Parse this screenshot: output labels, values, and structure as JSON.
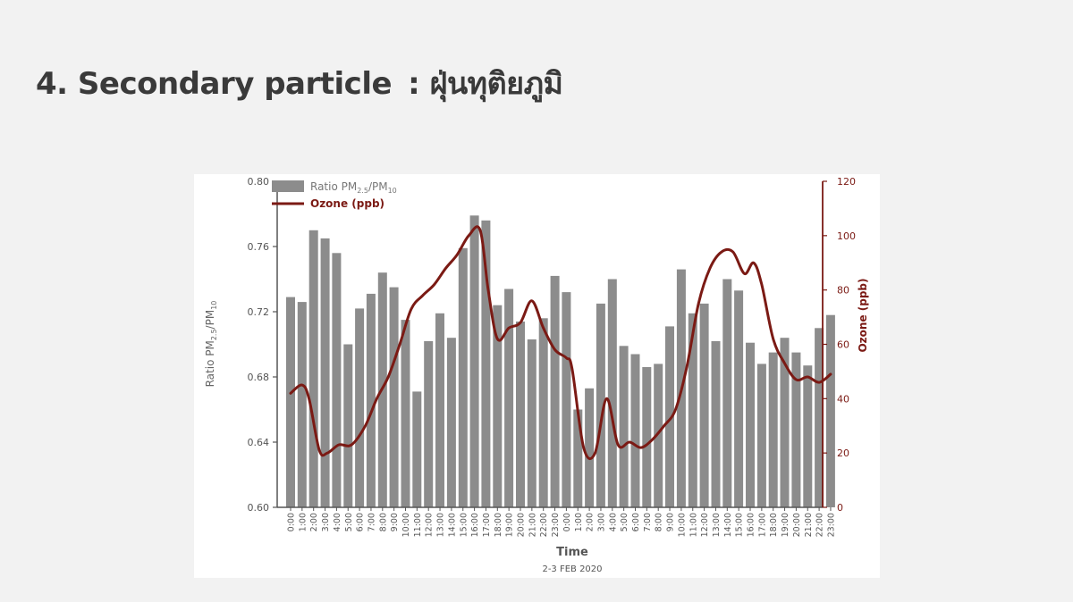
{
  "slide": {
    "title_main": "4. Secondary particle",
    "title_sep": ":",
    "title_thai": "ฝุ่นทุติยภูมิ"
  },
  "colors": {
    "bar": "#8c8c8c",
    "line": "#7b1a14",
    "axis_left": "#555555",
    "axis_right": "#7b1a14",
    "text": "#666666"
  },
  "chart_data": {
    "type": "bar",
    "title": "",
    "subtitle": "2-3 FEB 2020",
    "xlabel": "Time",
    "ylabel": "Ratio PM2.5/PM10",
    "ylabel_parts": {
      "base": "Ratio PM",
      "sub1": "2.5",
      "mid": "/PM",
      "sub2": "10"
    },
    "y2label": "Ozone (ppb)",
    "ylim": [
      0.6,
      0.8
    ],
    "yticks": [
      "0.60",
      "0.64",
      "0.68",
      "0.72",
      "0.76",
      "0.80"
    ],
    "y2lim": [
      0,
      120
    ],
    "y2ticks": [
      "0",
      "20",
      "40",
      "60",
      "80",
      "100",
      "120"
    ],
    "legend_position": "top-left",
    "legend": {
      "bar_parts": {
        "base": "Ratio PM",
        "sub1": "2.5",
        "mid": "/PM",
        "sub2": "10"
      },
      "line": "Ozone (ppb)"
    },
    "categories": [
      "0:00",
      "1:00",
      "2:00",
      "3:00",
      "4:00",
      "5:00",
      "6:00",
      "7:00",
      "8:00",
      "9:00",
      "10:00",
      "11:00",
      "12:00",
      "13:00",
      "14:00",
      "15:00",
      "16:00",
      "17:00",
      "18:00",
      "19:00",
      "20:00",
      "21:00",
      "22:00",
      "23:00",
      "0:00",
      "1:00",
      "2:00",
      "3:00",
      "4:00",
      "5:00",
      "6:00",
      "7:00",
      "8:00",
      "9:00",
      "10:00",
      "11:00",
      "12:00",
      "13:00",
      "14:00",
      "15:00",
      "16:00",
      "17:00",
      "18:00",
      "19:00",
      "20:00",
      "21:00",
      "22:00",
      "23:00"
    ],
    "series": [
      {
        "name": "Ratio PM2.5/PM10",
        "type": "bar",
        "axis": "left",
        "values": [
          0.729,
          0.726,
          0.77,
          0.765,
          0.756,
          0.7,
          0.722,
          0.731,
          0.744,
          0.735,
          0.715,
          0.671,
          0.702,
          0.719,
          0.704,
          0.759,
          0.779,
          0.776,
          0.724,
          0.734,
          0.714,
          0.703,
          0.716,
          0.742,
          0.732,
          0.66,
          0.673,
          0.725,
          0.74,
          0.699,
          0.694,
          0.686,
          0.688,
          0.711,
          0.746,
          0.719,
          0.725,
          0.702,
          0.74,
          0.733,
          0.701,
          0.688,
          0.695,
          0.704,
          0.695,
          0.687,
          0.71,
          0.718
        ]
      },
      {
        "name": "Ozone (ppb)",
        "type": "line",
        "axis": "right",
        "points": [
          [
            0,
            42
          ],
          [
            1,
            45
          ],
          [
            1.6,
            40
          ],
          [
            2.5,
            21
          ],
          [
            3.2,
            20
          ],
          [
            4.2,
            23
          ],
          [
            5.3,
            23
          ],
          [
            6.5,
            30
          ],
          [
            7.5,
            40
          ],
          [
            8.5,
            48
          ],
          [
            9.5,
            60
          ],
          [
            10.5,
            73
          ],
          [
            11.5,
            78
          ],
          [
            12.5,
            82
          ],
          [
            13.5,
            88
          ],
          [
            14.5,
            93
          ],
          [
            15.5,
            100
          ],
          [
            16.5,
            102
          ],
          [
            17.2,
            80
          ],
          [
            18,
            62
          ],
          [
            19,
            66
          ],
          [
            20,
            68
          ],
          [
            21,
            76
          ],
          [
            22,
            66
          ],
          [
            23,
            58
          ],
          [
            24,
            55
          ],
          [
            24.5,
            51
          ],
          [
            25.5,
            22
          ],
          [
            26.5,
            20
          ],
          [
            27.5,
            40
          ],
          [
            28.5,
            23
          ],
          [
            29.5,
            24
          ],
          [
            30.5,
            22
          ],
          [
            31.5,
            25
          ],
          [
            32.5,
            30
          ],
          [
            33.5,
            36
          ],
          [
            34.5,
            52
          ],
          [
            35.5,
            75
          ],
          [
            36.5,
            88
          ],
          [
            37.5,
            94
          ],
          [
            38.5,
            94
          ],
          [
            39.5,
            86
          ],
          [
            40.3,
            90
          ],
          [
            41,
            82
          ],
          [
            42,
            62
          ],
          [
            43,
            53
          ],
          [
            44,
            47
          ],
          [
            45,
            48
          ],
          [
            46,
            46
          ],
          [
            47,
            49
          ]
        ]
      }
    ]
  }
}
